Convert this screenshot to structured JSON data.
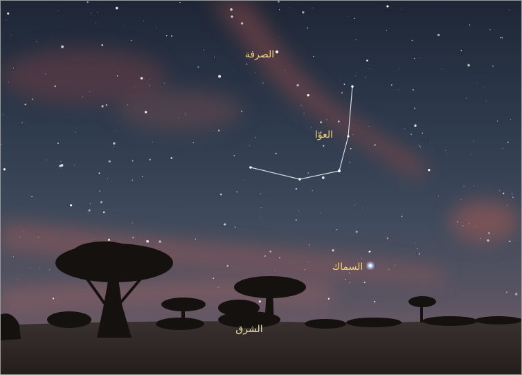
{
  "labels": {
    "sarfa": "الصرفة",
    "awwa": "العوّا",
    "simak": "السماك",
    "sharq": "الشرق"
  }
}
